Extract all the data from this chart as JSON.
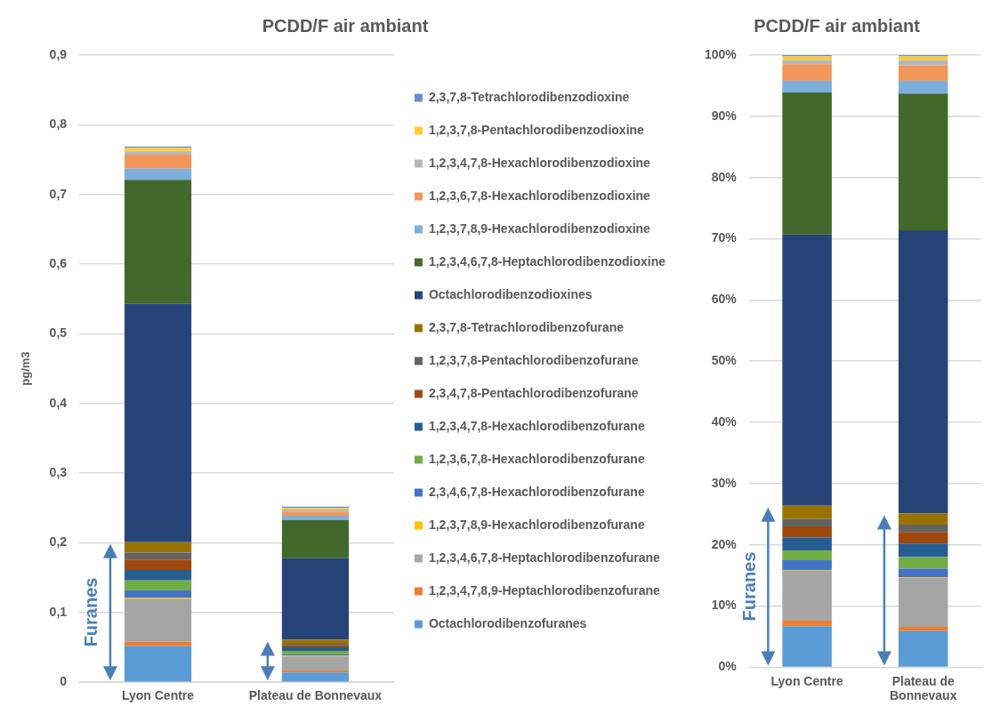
{
  "chart_data": [
    {
      "type": "bar",
      "title": "PCDD/F air ambiant",
      "ylabel": "pg/m3",
      "categories": [
        "Lyon Centre",
        "Plateau de Bonnevaux"
      ],
      "stacked": true,
      "grid": "y",
      "legend": "right",
      "ylim": [
        0,
        0.9
      ],
      "yticks": [
        0,
        {
          "value": 0.1,
          "label": "0,1"
        },
        {
          "value": 0.2,
          "label": "0,2"
        },
        {
          "value": 0.3,
          "label": "0,3"
        },
        {
          "value": 0.4,
          "label": "0,4"
        },
        {
          "value": 0.5,
          "label": "0,5"
        },
        {
          "value": 0.6,
          "label": "0,6"
        },
        {
          "value": 0.7,
          "label": "0,7"
        },
        {
          "value": 0.8,
          "label": "0,8"
        },
        {
          "value": 0.9,
          "label": "0,9"
        }
      ],
      "annotations": [
        "Furanes"
      ],
      "series": [
        {
          "name": "Octachlorodibenzofuranes",
          "color": "#5b9bd5",
          "values": [
            0.052,
            0.014
          ]
        },
        {
          "name": "1,2,3,4,7,8,9-Heptachlorodibenzofurane",
          "color": "#ed7d31",
          "values": [
            0.006,
            0.003
          ]
        },
        {
          "name": "1,2,3,4,6,7,8-Heptachlorodibenzofurane",
          "color": "#a5a5a5",
          "values": [
            0.061,
            0.02
          ]
        },
        {
          "name": "1,2,3,7,8,9-Hexachlorodibenzofurane",
          "color": "#ffc000",
          "values": [
            0.002,
            0.001
          ]
        },
        {
          "name": "2,3,4,6,7,8-Hexachlorodibenzofurane",
          "color": "#4472c4",
          "values": [
            0.011,
            0.002
          ]
        },
        {
          "name": "1,2,3,6,7,8-Hexachlorodibenzofurane",
          "color": "#70ad47",
          "values": [
            0.014,
            0.005
          ]
        },
        {
          "name": "1,2,3,4,7,8-Hexachlorodibenzofurane",
          "color": "#255e91",
          "values": [
            0.015,
            0.005
          ]
        },
        {
          "name": "2,3,4,7,8-Pentachlorodibenzofurane",
          "color": "#9e480e",
          "values": [
            0.015,
            0.003
          ]
        },
        {
          "name": "1,2,3,7,8-Pentachlorodibenzofurane",
          "color": "#636363",
          "values": [
            0.01,
            0.002
          ]
        },
        {
          "name": "2,3,7,8-Tetrachlorodibenzofurane",
          "color": "#997300",
          "values": [
            0.015,
            0.006
          ]
        },
        {
          "name": "Octachlorodibenzodioxines",
          "color": "#264478",
          "values": [
            0.342,
            0.117
          ]
        },
        {
          "name": "1,2,3,4,6,7,8-Heptachlorodibenzodioxine",
          "color": "#43682b",
          "values": [
            0.178,
            0.055
          ]
        },
        {
          "name": "1,2,3,7,8,9-Hexachlorodibenzodioxine",
          "color": "#7cafdd",
          "values": [
            0.016,
            0.006
          ]
        },
        {
          "name": "1,2,3,6,7,8-Hexachlorodibenzodioxine",
          "color": "#f1975a",
          "values": [
            0.02,
            0.006
          ]
        },
        {
          "name": "1,2,3,4,7,8-Hexachlorodibenzodioxine",
          "color": "#b7b7b7",
          "values": [
            0.005,
            0.003
          ]
        },
        {
          "name": "1,2,3,7,8-Pentachlorodibenzodioxine",
          "color": "#ffcd33",
          "values": [
            0.005,
            0.002
          ]
        },
        {
          "name": "2,3,7,8-Tetrachlorodibenzodioxine",
          "color": "#698ed0",
          "values": [
            0.002,
            0.002
          ]
        }
      ]
    },
    {
      "type": "bar",
      "title": "PCDD/F air ambiant",
      "categories": [
        "Lyon Centre",
        "Plateau de Bonnevaux"
      ],
      "stacked": true,
      "grid": "y",
      "ylim": [
        0,
        100
      ],
      "yticks": [
        {
          "value": 0,
          "label": "0%"
        },
        {
          "value": 10,
          "label": "10%"
        },
        {
          "value": 20,
          "label": "20%"
        },
        {
          "value": 30,
          "label": "30%"
        },
        {
          "value": 40,
          "label": "40%"
        },
        {
          "value": 50,
          "label": "50%"
        },
        {
          "value": 60,
          "label": "60%"
        },
        {
          "value": 70,
          "label": "70%"
        },
        {
          "value": 80,
          "label": "80%"
        },
        {
          "value": 90,
          "label": "90%"
        },
        {
          "value": 100,
          "label": "100%"
        }
      ],
      "annotations": [
        "Furanes"
      ],
      "series": [
        {
          "color": "#5b9bd5",
          "values": [
            6.7,
            5.9
          ]
        },
        {
          "color": "#ed7d31",
          "values": [
            0.9,
            0.7
          ]
        },
        {
          "color": "#a5a5a5",
          "values": [
            8.2,
            8.0
          ]
        },
        {
          "color": "#ffc000",
          "values": [
            0.1,
            0.1
          ]
        },
        {
          "color": "#4472c4",
          "values": [
            1.6,
            1.4
          ]
        },
        {
          "color": "#70ad47",
          "values": [
            1.6,
            1.9
          ]
        },
        {
          "color": "#255e91",
          "values": [
            2.1,
            2.2
          ]
        },
        {
          "color": "#9e480e",
          "values": [
            1.8,
            1.9
          ]
        },
        {
          "color": "#636363",
          "values": [
            1.2,
            1.2
          ]
        },
        {
          "color": "#997300",
          "values": [
            2.2,
            1.8
          ]
        },
        {
          "color": "#264478",
          "values": [
            44.3,
            46.3
          ]
        },
        {
          "color": "#43682b",
          "values": [
            23.2,
            22.3
          ]
        },
        {
          "color": "#7cafdd",
          "values": [
            1.9,
            2.1
          ]
        },
        {
          "color": "#f1975a",
          "values": [
            2.7,
            2.5
          ]
        },
        {
          "color": "#b7b7b7",
          "values": [
            0.7,
            0.9
          ]
        },
        {
          "color": "#ffcd33",
          "values": [
            0.6,
            0.6
          ]
        },
        {
          "color": "#698ed0",
          "values": [
            0.2,
            0.2
          ]
        }
      ]
    }
  ]
}
